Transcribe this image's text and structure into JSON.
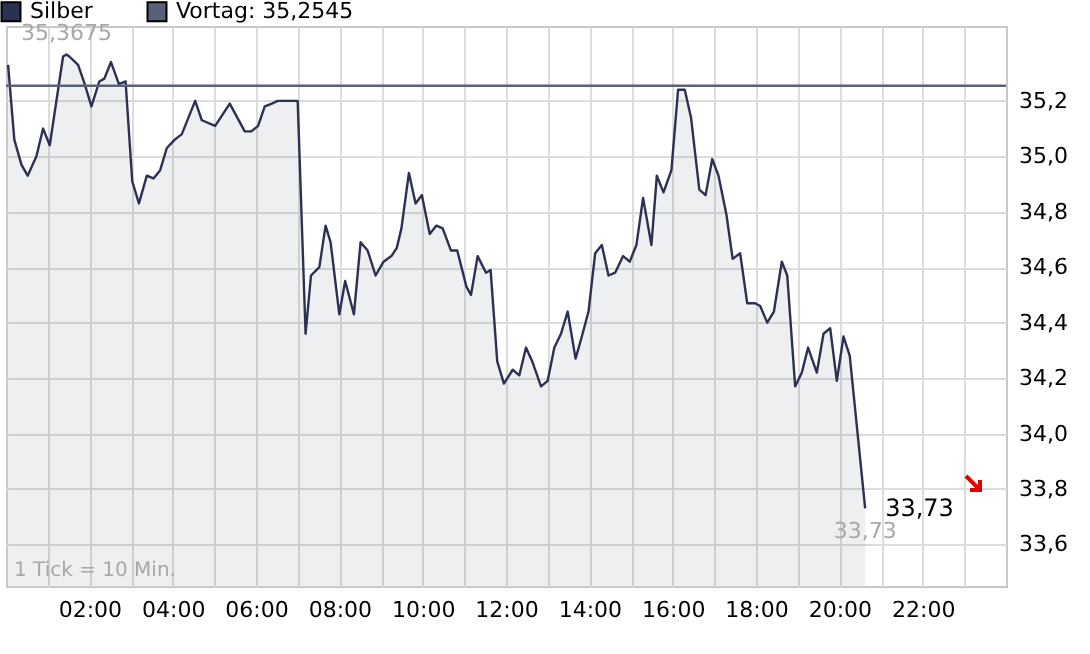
{
  "chart_data": {
    "type": "area",
    "x": [
      0.05,
      0.2,
      0.37,
      0.52,
      0.73,
      0.89,
      1.05,
      1.37,
      1.45,
      1.52,
      1.73,
      1.89,
      2.05,
      2.24,
      2.36,
      2.52,
      2.71,
      2.87,
      3.03,
      3.19,
      3.38,
      3.54,
      3.7,
      3.86,
      4.05,
      4.22,
      4.54,
      4.7,
      5.02,
      5.37,
      5.73,
      5.89,
      6.05,
      6.21,
      6.38,
      6.52,
      7.0,
      7.19,
      7.32,
      7.52,
      7.67,
      7.79,
      8.0,
      8.14,
      8.35,
      8.51,
      8.68,
      8.87,
      9.06,
      9.25,
      9.38,
      9.49,
      9.67,
      9.83,
      9.98,
      10.17,
      10.33,
      10.48,
      10.68,
      10.83,
      11.05,
      11.16,
      11.32,
      11.52,
      11.63,
      11.79,
      11.95,
      12.16,
      12.32,
      12.48,
      12.63,
      12.84,
      13.0,
      13.16,
      13.32,
      13.48,
      13.67,
      13.82,
      13.98,
      14.14,
      14.3,
      14.46,
      14.62,
      14.81,
      14.97,
      15.13,
      15.29,
      15.49,
      15.62,
      15.78,
      15.97,
      16.13,
      16.29,
      16.44,
      16.64,
      16.79,
      16.95,
      17.1,
      17.29,
      17.44,
      17.62,
      17.79,
      17.98,
      18.1,
      18.27,
      18.43,
      18.62,
      18.75,
      18.94,
      19.1,
      19.25,
      19.46,
      19.62,
      19.78,
      19.94,
      20.1,
      20.25,
      20.62
    ],
    "series": [
      {
        "name": "Silber",
        "color": "#2b3152",
        "values": [
          35.33,
          35.06,
          34.97,
          34.93,
          35.0,
          35.1,
          35.04,
          35.36,
          35.3675,
          35.36,
          35.33,
          35.26,
          35.18,
          35.27,
          35.28,
          35.34,
          35.26,
          35.27,
          34.91,
          34.83,
          34.93,
          34.92,
          34.95,
          35.03,
          35.06,
          35.08,
          35.2,
          35.13,
          35.11,
          35.19,
          35.09,
          35.09,
          35.11,
          35.18,
          35.19,
          35.2,
          35.2,
          34.36,
          34.57,
          34.6,
          34.75,
          34.69,
          34.43,
          34.55,
          34.43,
          34.69,
          34.66,
          34.57,
          34.62,
          34.64,
          34.67,
          34.74,
          34.94,
          34.83,
          34.86,
          34.72,
          34.75,
          34.74,
          34.66,
          34.66,
          34.53,
          34.5,
          34.64,
          34.58,
          34.59,
          34.26,
          34.18,
          34.23,
          34.21,
          34.31,
          34.26,
          34.17,
          34.19,
          34.31,
          34.36,
          34.44,
          34.27,
          34.35,
          34.44,
          34.65,
          34.68,
          34.57,
          34.58,
          34.64,
          34.62,
          34.68,
          34.85,
          34.68,
          34.93,
          34.87,
          34.95,
          35.24,
          35.24,
          35.14,
          34.88,
          34.86,
          34.99,
          34.93,
          34.79,
          34.63,
          34.65,
          34.47,
          34.47,
          34.46,
          34.4,
          34.44,
          34.62,
          34.57,
          34.17,
          34.22,
          34.31,
          34.22,
          34.36,
          34.38,
          34.19,
          34.35,
          34.28,
          33.73
        ],
        "value_labels": [
          null,
          null,
          null,
          null,
          null,
          null,
          null,
          null,
          null,
          null,
          null,
          null,
          null,
          null,
          null,
          null,
          null,
          null,
          null,
          null,
          null,
          null,
          null,
          null,
          null,
          null,
          null,
          null,
          null,
          null,
          null,
          null,
          null,
          null,
          null,
          null,
          null,
          null,
          null,
          null,
          null,
          null,
          null,
          null,
          null,
          null,
          null,
          null,
          null,
          null,
          null,
          null,
          null,
          null,
          null,
          null,
          null,
          null,
          null,
          null,
          null,
          null,
          null,
          null,
          null,
          null,
          null,
          null,
          null,
          null,
          null,
          null,
          null,
          null,
          null,
          null,
          null,
          null,
          null,
          null,
          null,
          null,
          null,
          null,
          null,
          null,
          null,
          null,
          null,
          null,
          null,
          null,
          null,
          null,
          null,
          null,
          null,
          null,
          null,
          null,
          null,
          null,
          null,
          null,
          null,
          null,
          null,
          null,
          null,
          null,
          null,
          null,
          null,
          null,
          null,
          null,
          null,
          "33,73"
        ]
      }
    ],
    "xlim": [
      0,
      24
    ],
    "xticks": [
      {
        "value": 1,
        "label": null
      },
      {
        "value": 2,
        "label": "02:00"
      },
      {
        "value": 3,
        "label": null
      },
      {
        "value": 4,
        "label": "04:00"
      },
      {
        "value": 5,
        "label": null
      },
      {
        "value": 6,
        "label": "06:00"
      },
      {
        "value": 7,
        "label": null
      },
      {
        "value": 8,
        "label": "08:00"
      },
      {
        "value": 9,
        "label": null
      },
      {
        "value": 10,
        "label": "10:00"
      },
      {
        "value": 11,
        "label": null
      },
      {
        "value": 12,
        "label": "12:00"
      },
      {
        "value": 13,
        "label": null
      },
      {
        "value": 14,
        "label": "14:00"
      },
      {
        "value": 15,
        "label": null
      },
      {
        "value": 16,
        "label": "16:00"
      },
      {
        "value": 17,
        "label": null
      },
      {
        "value": 18,
        "label": "18:00"
      },
      {
        "value": 19,
        "label": null
      },
      {
        "value": 20,
        "label": "20:00"
      },
      {
        "value": 21,
        "label": null
      },
      {
        "value": 22,
        "label": "22:00"
      },
      {
        "value": 23,
        "label": null
      }
    ],
    "ylim": [
      33.45,
      35.47
    ],
    "yticks": [
      {
        "value": 33.6,
        "label": "33,6"
      },
      {
        "value": 33.8,
        "label": "33,8"
      },
      {
        "value": 34.0,
        "label": "34,0"
      },
      {
        "value": 34.2,
        "label": "34,2"
      },
      {
        "value": 34.4,
        "label": "34,4"
      },
      {
        "value": 34.6,
        "label": "34,6"
      },
      {
        "value": 34.8,
        "label": "34,8"
      },
      {
        "value": 35.0,
        "label": "35,0"
      },
      {
        "value": 35.2,
        "label": "35,2"
      }
    ],
    "ref_lines": [
      {
        "axis": "y",
        "value": 35.2545,
        "label": "Vortag: 35,2545",
        "color": "#5a6078"
      }
    ],
    "annotations": [
      {
        "text": "35,3675",
        "x": 1.45,
        "y": 35.3675
      },
      {
        "text": "33,73",
        "x": 20.62,
        "y": 33.73
      },
      "1 Tick = 10 Min."
    ],
    "grid": true,
    "legend": "top left",
    "marker": "none",
    "line_style": "solid"
  }
}
